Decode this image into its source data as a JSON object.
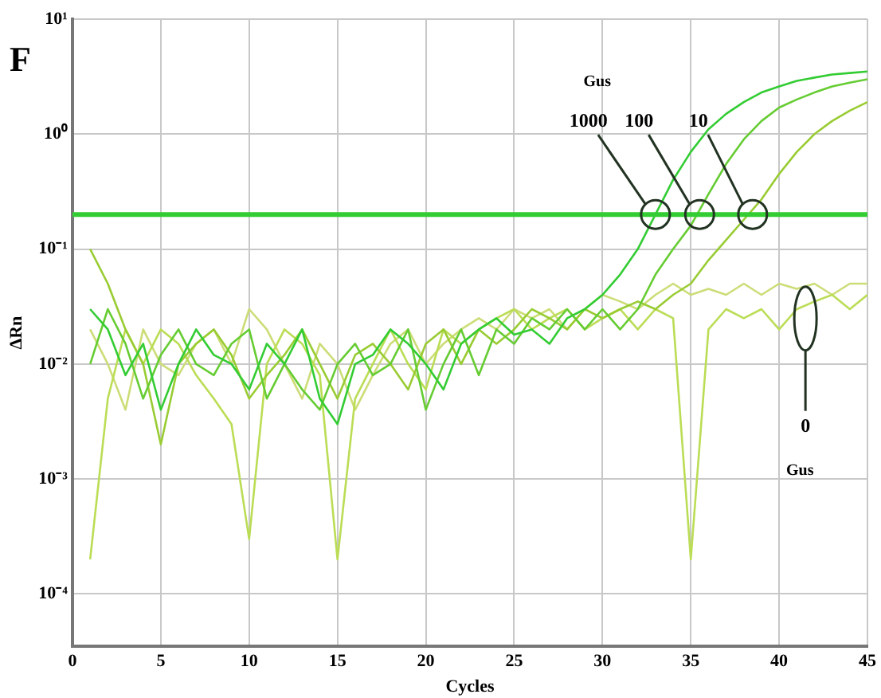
{
  "chart_data": {
    "type": "line",
    "title": "F",
    "xlabel": "Cycles",
    "ylabel": "ΔRn",
    "x": [
      1,
      2,
      3,
      4,
      5,
      6,
      7,
      8,
      9,
      10,
      11,
      12,
      13,
      14,
      15,
      16,
      17,
      18,
      19,
      20,
      21,
      22,
      23,
      24,
      25,
      26,
      27,
      28,
      29,
      30,
      31,
      32,
      33,
      34,
      35,
      36,
      37,
      38,
      39,
      40,
      41,
      42,
      43,
      44,
      45
    ],
    "series": [
      {
        "color": "#33cc33",
        "values": [
          0.03,
          0.02,
          0.008,
          0.015,
          0.004,
          0.01,
          0.02,
          0.012,
          0.01,
          0.006,
          0.015,
          0.01,
          0.02,
          0.005,
          0.003,
          0.01,
          0.012,
          0.02,
          0.015,
          0.01,
          0.006,
          0.015,
          0.02,
          0.025,
          0.018,
          0.02,
          0.015,
          0.025,
          0.03,
          0.04,
          0.06,
          0.1,
          0.2,
          0.4,
          0.7,
          1.1,
          1.5,
          1.9,
          2.3,
          2.6,
          2.9,
          3.1,
          3.3,
          3.4,
          3.5
        ]
      },
      {
        "color": "#66cc33",
        "values": [
          0.01,
          0.03,
          0.015,
          0.005,
          0.012,
          0.02,
          0.01,
          0.008,
          0.015,
          0.02,
          0.005,
          0.01,
          0.006,
          0.004,
          0.01,
          0.015,
          0.008,
          0.01,
          0.02,
          0.004,
          0.01,
          0.02,
          0.008,
          0.02,
          0.015,
          0.025,
          0.02,
          0.03,
          0.02,
          0.03,
          0.02,
          0.03,
          0.06,
          0.1,
          0.16,
          0.3,
          0.55,
          0.9,
          1.3,
          1.7,
          2.0,
          2.3,
          2.6,
          2.8,
          3.0
        ]
      },
      {
        "color": "#99cc33",
        "values": [
          0.1,
          0.05,
          0.02,
          0.01,
          0.002,
          0.01,
          0.015,
          0.02,
          0.012,
          0.005,
          0.008,
          0.012,
          0.02,
          0.01,
          0.005,
          0.012,
          0.015,
          0.01,
          0.006,
          0.015,
          0.02,
          0.01,
          0.02,
          0.015,
          0.02,
          0.03,
          0.025,
          0.02,
          0.03,
          0.025,
          0.03,
          0.035,
          0.03,
          0.04,
          0.05,
          0.08,
          0.12,
          0.18,
          0.27,
          0.45,
          0.7,
          1.0,
          1.3,
          1.6,
          1.9
        ]
      },
      {
        "color": "#bbdd55",
        "values": [
          0.0002,
          0.005,
          0.02,
          0.01,
          0.02,
          0.015,
          0.008,
          0.005,
          0.003,
          0.0003,
          0.01,
          0.02,
          0.015,
          0.008,
          0.0002,
          0.005,
          0.01,
          0.02,
          0.01,
          0.006,
          0.02,
          0.015,
          0.02,
          0.025,
          0.03,
          0.02,
          0.025,
          0.03,
          0.02,
          0.025,
          0.03,
          0.02,
          0.03,
          0.025,
          0.0002,
          0.02,
          0.03,
          0.025,
          0.03,
          0.02,
          0.03,
          0.035,
          0.04,
          0.03,
          0.04
        ]
      },
      {
        "color": "#ccdd77",
        "values": [
          0.02,
          0.01,
          0.004,
          0.02,
          0.01,
          0.008,
          0.015,
          0.02,
          0.01,
          0.03,
          0.02,
          0.01,
          0.005,
          0.015,
          0.01,
          0.004,
          0.008,
          0.015,
          0.02,
          0.01,
          0.015,
          0.02,
          0.025,
          0.02,
          0.03,
          0.025,
          0.03,
          0.02,
          0.03,
          0.04,
          0.035,
          0.03,
          0.04,
          0.05,
          0.04,
          0.045,
          0.04,
          0.05,
          0.04,
          0.05,
          0.045,
          0.05,
          0.04,
          0.05,
          0.05
        ]
      }
    ],
    "log": "y",
    "ylim": [
      3.5e-05,
      10
    ],
    "yticks": [
      {
        "value": 10,
        "label": "10¹"
      },
      {
        "value": 1,
        "label": "10⁰"
      },
      {
        "value": 0.1,
        "label": "10⁻¹"
      },
      {
        "value": 0.01,
        "label": "10⁻²"
      },
      {
        "value": 0.001,
        "label": "10⁻³"
      },
      {
        "value": 0.0001,
        "label": "10⁻⁴"
      }
    ],
    "xlim": [
      0,
      45
    ],
    "xticks": [
      0,
      5,
      10,
      15,
      20,
      25,
      30,
      35,
      40,
      45
    ],
    "grid": true,
    "marker": "none",
    "line_style": "solid",
    "ref_lines": [
      {
        "axis": "y",
        "value": 0.2,
        "color": "#33cc33"
      }
    ],
    "annotations": [
      "Gus",
      {
        "text": "1000",
        "x": 33,
        "y": 0.2
      },
      {
        "text": "100",
        "x": 35.5,
        "y": 0.2
      },
      {
        "text": "10",
        "x": 38.5,
        "y": 0.2
      },
      "0",
      "Gus"
    ]
  }
}
